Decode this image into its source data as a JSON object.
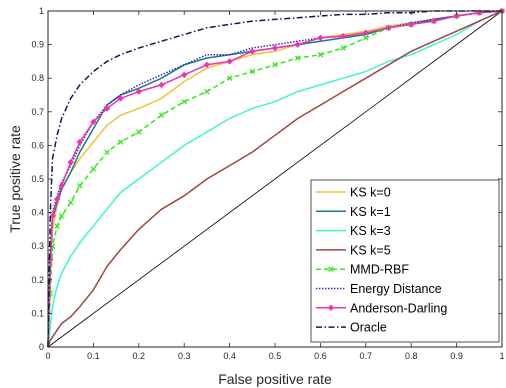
{
  "chart_data": {
    "type": "line",
    "title": "",
    "xlabel": "False positive rate",
    "ylabel": "True positive rate",
    "xlim": [
      0,
      1
    ],
    "ylim": [
      0,
      1
    ],
    "x_ticks": [
      "0",
      "0.1",
      "0.2",
      "0.3",
      "0.4",
      "0.5",
      "0.6",
      "0.7",
      "0.8",
      "0.9",
      "1"
    ],
    "y_ticks": [
      "0",
      "0.1",
      "0.2",
      "0.3",
      "0.4",
      "0.5",
      "0.6",
      "0.7",
      "0.8",
      "0.9",
      "1"
    ],
    "grid": false,
    "legend_position": "bottom-right",
    "diagonal": [
      [
        0,
        0
      ],
      [
        1,
        1
      ]
    ],
    "series": [
      {
        "name": "KS k=0",
        "color": "#f2c335",
        "style": "solid",
        "marker": "none",
        "x": [
          0,
          0.005,
          0.01,
          0.02,
          0.03,
          0.05,
          0.07,
          0.1,
          0.13,
          0.16,
          0.2,
          0.25,
          0.3,
          0.35,
          0.4,
          0.45,
          0.5,
          0.55,
          0.6,
          0.65,
          0.7,
          0.75,
          0.8,
          0.85,
          0.9,
          0.95,
          1
        ],
        "y": [
          0,
          0.2,
          0.35,
          0.42,
          0.47,
          0.52,
          0.56,
          0.61,
          0.66,
          0.69,
          0.71,
          0.74,
          0.79,
          0.83,
          0.85,
          0.87,
          0.88,
          0.9,
          0.92,
          0.93,
          0.94,
          0.955,
          0.965,
          0.975,
          0.985,
          0.995,
          1
        ]
      },
      {
        "name": "KS k=1",
        "color": "#1a7a8c",
        "style": "solid",
        "marker": "none",
        "x": [
          0,
          0.005,
          0.01,
          0.02,
          0.03,
          0.05,
          0.07,
          0.1,
          0.13,
          0.16,
          0.2,
          0.25,
          0.3,
          0.35,
          0.4,
          0.45,
          0.5,
          0.55,
          0.6,
          0.65,
          0.7,
          0.75,
          0.8,
          0.85,
          0.9,
          0.95,
          1
        ],
        "y": [
          0,
          0.25,
          0.38,
          0.43,
          0.47,
          0.52,
          0.58,
          0.65,
          0.72,
          0.75,
          0.77,
          0.8,
          0.84,
          0.86,
          0.87,
          0.88,
          0.89,
          0.9,
          0.91,
          0.92,
          0.93,
          0.95,
          0.96,
          0.975,
          0.985,
          0.995,
          1
        ]
      },
      {
        "name": "KS k=3",
        "color": "#3ff5d0",
        "style": "solid",
        "marker": "none",
        "x": [
          0,
          0.005,
          0.01,
          0.02,
          0.03,
          0.05,
          0.07,
          0.1,
          0.13,
          0.16,
          0.2,
          0.25,
          0.3,
          0.35,
          0.4,
          0.45,
          0.5,
          0.55,
          0.6,
          0.65,
          0.7,
          0.75,
          0.8,
          0.85,
          0.9,
          0.95,
          1
        ],
        "y": [
          0,
          0.06,
          0.12,
          0.18,
          0.22,
          0.27,
          0.31,
          0.36,
          0.41,
          0.46,
          0.5,
          0.55,
          0.6,
          0.64,
          0.68,
          0.71,
          0.73,
          0.76,
          0.78,
          0.8,
          0.82,
          0.85,
          0.87,
          0.9,
          0.93,
          0.97,
          1
        ]
      },
      {
        "name": "KS k=5",
        "color": "#a0453e",
        "style": "solid",
        "marker": "none",
        "x": [
          0,
          0.005,
          0.01,
          0.02,
          0.03,
          0.05,
          0.07,
          0.1,
          0.13,
          0.16,
          0.2,
          0.25,
          0.3,
          0.35,
          0.4,
          0.45,
          0.5,
          0.55,
          0.6,
          0.65,
          0.7,
          0.75,
          0.8,
          0.85,
          0.9,
          0.95,
          1
        ],
        "y": [
          0,
          0.02,
          0.03,
          0.05,
          0.07,
          0.09,
          0.12,
          0.17,
          0.24,
          0.29,
          0.35,
          0.41,
          0.45,
          0.5,
          0.54,
          0.58,
          0.63,
          0.68,
          0.72,
          0.76,
          0.8,
          0.84,
          0.88,
          0.91,
          0.94,
          0.97,
          1
        ]
      },
      {
        "name": "MMD-RBF",
        "color": "#33e81c",
        "style": "dashed",
        "marker": "x",
        "x": [
          0,
          0.005,
          0.01,
          0.02,
          0.03,
          0.05,
          0.07,
          0.1,
          0.13,
          0.16,
          0.2,
          0.25,
          0.3,
          0.35,
          0.4,
          0.45,
          0.5,
          0.55,
          0.6,
          0.65,
          0.7,
          0.75,
          0.8,
          0.85,
          0.9,
          0.95,
          1
        ],
        "y": [
          0,
          0.16,
          0.3,
          0.36,
          0.39,
          0.43,
          0.48,
          0.53,
          0.58,
          0.61,
          0.64,
          0.69,
          0.73,
          0.76,
          0.8,
          0.82,
          0.84,
          0.86,
          0.87,
          0.89,
          0.92,
          0.95,
          0.96,
          0.97,
          0.985,
          0.995,
          1
        ]
      },
      {
        "name": "Energy Distance",
        "color": "#1f1fd6",
        "style": "dotted",
        "marker": "none",
        "x": [
          0,
          0.005,
          0.01,
          0.02,
          0.03,
          0.05,
          0.07,
          0.1,
          0.13,
          0.16,
          0.2,
          0.25,
          0.3,
          0.35,
          0.4,
          0.45,
          0.5,
          0.55,
          0.6,
          0.65,
          0.7,
          0.75,
          0.8,
          0.85,
          0.9,
          0.95,
          1
        ],
        "y": [
          0,
          0.27,
          0.4,
          0.45,
          0.49,
          0.54,
          0.6,
          0.67,
          0.72,
          0.75,
          0.78,
          0.81,
          0.84,
          0.87,
          0.87,
          0.89,
          0.9,
          0.91,
          0.92,
          0.925,
          0.935,
          0.95,
          0.965,
          0.975,
          0.985,
          0.995,
          1
        ]
      },
      {
        "name": "Anderson-Darling",
        "color": "#f032b4",
        "style": "solid",
        "marker": "diamond",
        "x": [
          0,
          0.005,
          0.01,
          0.02,
          0.03,
          0.05,
          0.07,
          0.1,
          0.13,
          0.16,
          0.2,
          0.25,
          0.3,
          0.35,
          0.4,
          0.45,
          0.5,
          0.55,
          0.6,
          0.65,
          0.7,
          0.75,
          0.8,
          0.85,
          0.9,
          0.95,
          1
        ],
        "y": [
          0,
          0.26,
          0.39,
          0.44,
          0.48,
          0.55,
          0.61,
          0.67,
          0.71,
          0.74,
          0.76,
          0.78,
          0.81,
          0.84,
          0.85,
          0.88,
          0.89,
          0.9,
          0.92,
          0.925,
          0.935,
          0.95,
          0.96,
          0.97,
          0.985,
          0.995,
          1
        ]
      },
      {
        "name": "Oracle",
        "color": "#14145a",
        "style": "dashdot",
        "marker": "none",
        "x": [
          0,
          0.005,
          0.01,
          0.02,
          0.03,
          0.05,
          0.07,
          0.1,
          0.13,
          0.16,
          0.2,
          0.25,
          0.3,
          0.35,
          0.4,
          0.45,
          0.5,
          0.55,
          0.6,
          0.65,
          0.7,
          0.75,
          0.8,
          0.85,
          0.9,
          0.95,
          1
        ],
        "y": [
          0,
          0.4,
          0.56,
          0.63,
          0.68,
          0.74,
          0.78,
          0.82,
          0.85,
          0.87,
          0.89,
          0.91,
          0.93,
          0.95,
          0.96,
          0.97,
          0.975,
          0.98,
          0.985,
          0.99,
          0.99,
          0.995,
          0.995,
          1,
          1,
          1,
          1
        ]
      }
    ]
  }
}
